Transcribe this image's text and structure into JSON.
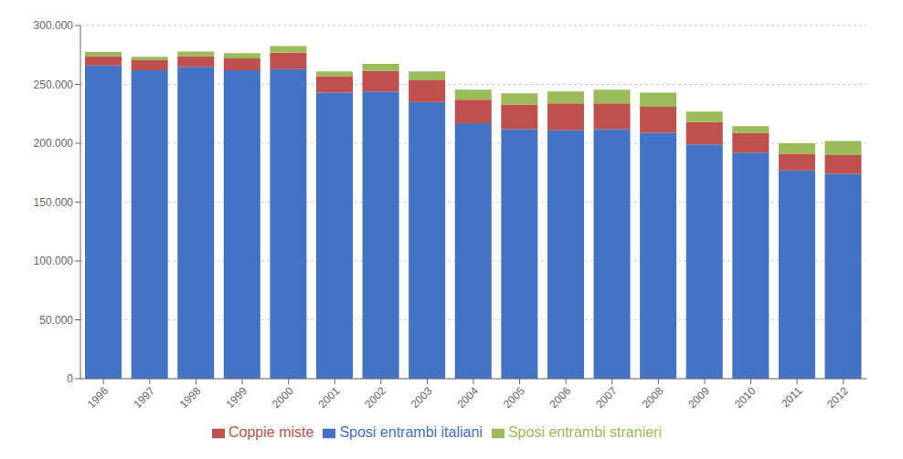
{
  "chart_data": {
    "type": "bar",
    "stacked": true,
    "categories": [
      "1996",
      "1997",
      "1998",
      "1999",
      "2000",
      "2001",
      "2002",
      "2003",
      "2004",
      "2005",
      "2006",
      "2007",
      "2008",
      "2009",
      "2010",
      "2011",
      "2012"
    ],
    "series": [
      {
        "name": "Sposi entrambi italiani",
        "color": "#4472C4",
        "values": [
          266000,
          262000,
          265000,
          262000,
          263000,
          243000,
          244000,
          235000,
          217000,
          212000,
          211000,
          212000,
          209000,
          199000,
          192000,
          177000,
          174000
        ]
      },
      {
        "name": "Coppie miste",
        "color": "#C0504D",
        "values": [
          8000,
          8500,
          9000,
          10000,
          14000,
          14000,
          17500,
          18500,
          20000,
          21000,
          23000,
          22000,
          22000,
          19000,
          17000,
          14000,
          16000
        ]
      },
      {
        "name": "Sposi entrambi stranieri",
        "color": "#9BBB59",
        "values": [
          3500,
          3000,
          4000,
          4500,
          5500,
          4000,
          6000,
          7500,
          8500,
          9500,
          10000,
          11500,
          12000,
          9000,
          5500,
          9000,
          12000
        ]
      }
    ],
    "ylim": [
      0,
      300000
    ],
    "yticks": [
      0,
      {
        "value": 50000,
        "label": "50.000"
      },
      {
        "value": 100000,
        "label": "100.000"
      },
      {
        "value": 150000,
        "label": "150.000"
      },
      {
        "value": 200000,
        "label": "200.000"
      },
      {
        "value": 250000,
        "label": "250.000"
      },
      {
        "value": 300000,
        "label": "300.000"
      }
    ],
    "grid": true,
    "legend": "bottom"
  }
}
